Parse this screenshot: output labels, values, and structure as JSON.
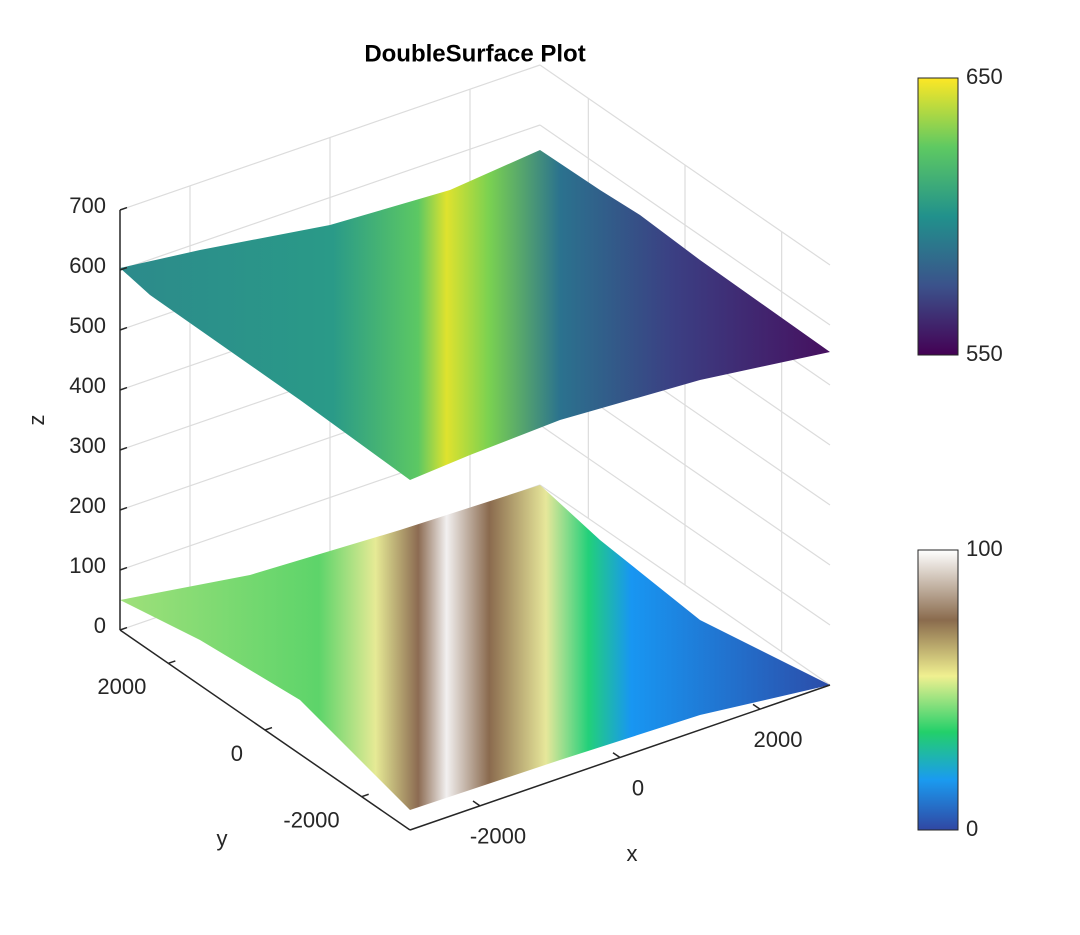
{
  "chart_data": {
    "type": "surface3d",
    "title": "DoubleSurface Plot",
    "xlabel": "x",
    "ylabel": "y",
    "zlabel": "z",
    "xlim": [
      -3000,
      3000
    ],
    "xticks": [
      -2000,
      0,
      2000
    ],
    "ylim": [
      -3000,
      3000
    ],
    "yticks": [
      -2000,
      0,
      2000
    ],
    "zlim": [
      0,
      700
    ],
    "zticks": [
      0,
      100,
      200,
      300,
      400,
      500,
      600,
      700
    ],
    "grid": true,
    "colorbars": [
      {
        "lim": [
          550,
          650
        ],
        "ticks": [
          550,
          650
        ]
      },
      {
        "lim": [
          0,
          100
        ],
        "ticks": [
          0,
          100
        ]
      }
    ]
  }
}
